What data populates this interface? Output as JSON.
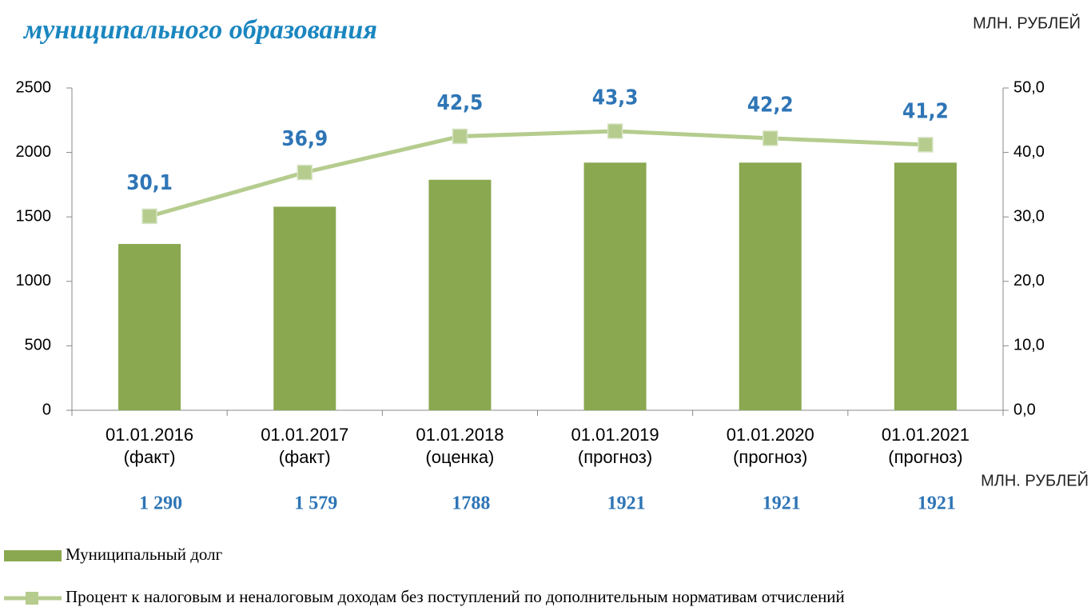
{
  "chart_data": {
    "type": "bar_line",
    "title": "муниципального образования",
    "unit_label_top": "МЛН. РУБЛЕЙ",
    "unit_label_values": "МЛН. РУБЛЕЙ",
    "categories": [
      "01.01.2016\n(факт)",
      "01.01.2017\n(факт)",
      "01.01.2018\n(оценка)",
      "01.01.2019\n(прогноз)",
      "01.01.2020\n(прогноз)",
      "01.01.2021\n(прогноз)"
    ],
    "series": [
      {
        "name": "Муниципальный долг",
        "type": "bar",
        "color": "#8aa84f",
        "values": [
          1290,
          1579,
          1788,
          1921,
          1921,
          1921
        ],
        "value_labels": [
          "1 290",
          "1 579",
          "1788",
          "1921",
          "1921",
          "1921"
        ]
      },
      {
        "name": "Процент к налоговым и неналоговым доходам без поступлений по дополнительным нормативам отчислений",
        "type": "line",
        "axis": "y2",
        "color": "#b5cc8e",
        "values": [
          30.1,
          36.9,
          42.5,
          43.3,
          42.2,
          41.2
        ],
        "value_labels": [
          "30,1",
          "36,9",
          "42,5",
          "43,3",
          "42,2",
          "41,2"
        ]
      }
    ],
    "ylim": [
      0,
      2500
    ],
    "yticks": [
      0,
      500,
      1000,
      1500,
      2000,
      2500
    ],
    "y2lim": [
      0,
      50
    ],
    "y2ticks": [
      {
        "value": 0,
        "label": "0,0"
      },
      {
        "value": 10,
        "label": "10,0"
      },
      {
        "value": 20,
        "label": "20,0"
      },
      {
        "value": 30,
        "label": "30,0"
      },
      {
        "value": 40,
        "label": "40,0"
      },
      {
        "value": 50,
        "label": "50,0"
      }
    ],
    "grid": false
  }
}
